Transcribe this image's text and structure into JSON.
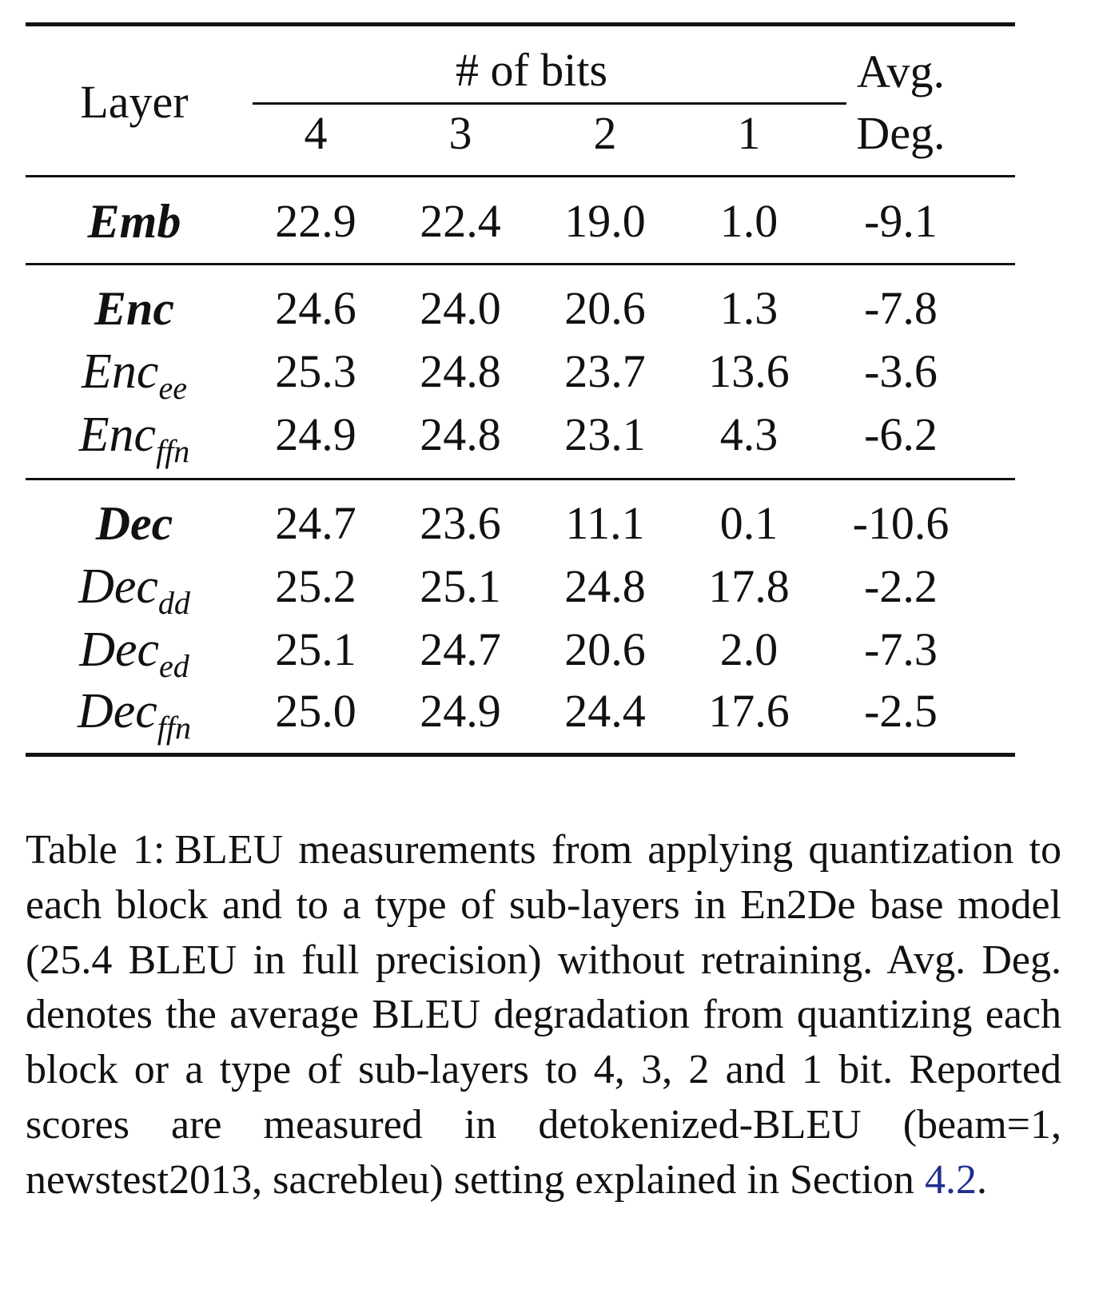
{
  "table": {
    "header": {
      "layer": "Layer",
      "bits_group": "# of bits",
      "bits": [
        "4",
        "3",
        "2",
        "1"
      ],
      "avg_line1": "Avg.",
      "avg_line2": "Deg."
    },
    "rows": [
      {
        "base": "Emb",
        "sub": "",
        "bold": true,
        "values": [
          "22.9",
          "22.4",
          "19.0",
          "1.0"
        ],
        "avg": "-9.1"
      },
      {
        "base": "Enc",
        "sub": "",
        "bold": true,
        "values": [
          "24.6",
          "24.0",
          "20.6",
          "1.3"
        ],
        "avg": "-7.8"
      },
      {
        "base": "Enc",
        "sub": "ee",
        "bold": false,
        "values": [
          "25.3",
          "24.8",
          "23.7",
          "13.6"
        ],
        "avg": "-3.6"
      },
      {
        "base": "Enc",
        "sub": "ffn",
        "bold": false,
        "values": [
          "24.9",
          "24.8",
          "23.1",
          "4.3"
        ],
        "avg": "-6.2"
      },
      {
        "base": "Dec",
        "sub": "",
        "bold": true,
        "values": [
          "24.7",
          "23.6",
          "11.1",
          "0.1"
        ],
        "avg": "-10.6"
      },
      {
        "base": "Dec",
        "sub": "dd",
        "bold": false,
        "values": [
          "25.2",
          "25.1",
          "24.8",
          "17.8"
        ],
        "avg": "-2.2"
      },
      {
        "base": "Dec",
        "sub": "ed",
        "bold": false,
        "values": [
          "25.1",
          "24.7",
          "20.6",
          "2.0"
        ],
        "avg": "-7.3"
      },
      {
        "base": "Dec",
        "sub": "ffn",
        "bold": false,
        "values": [
          "25.0",
          "24.9",
          "24.4",
          "17.6"
        ],
        "avg": "-2.5"
      }
    ]
  },
  "caption": {
    "label": "Table 1:",
    "text": "BLEU measurements from applying quantization to each block and to a type of sub-layers in En2De base model (25.4 BLEU in full precision) without retraining. Avg. Deg. denotes the average BLEU degradation from quantizing each block or a type of sub-layers to 4, 3, 2 and 1 bit. Reported scores are measured in detokenized-BLEU (beam=1, newstest2013, sacrebleu) setting explained in Section",
    "ref": "4.2",
    "end": ".",
    "ref_color": "#1f2f8f"
  }
}
